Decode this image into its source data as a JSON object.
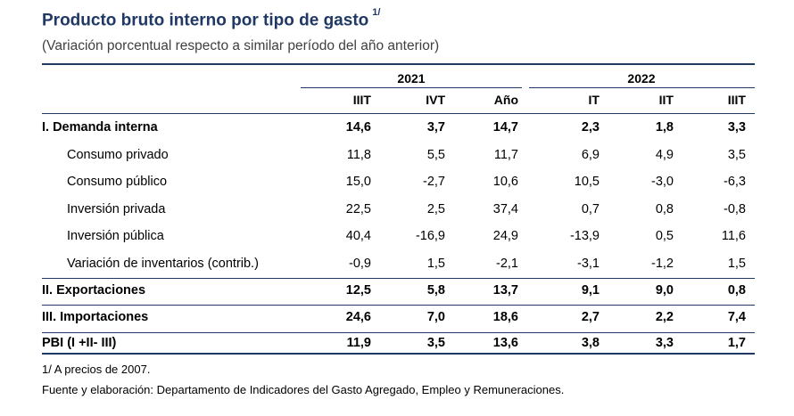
{
  "title": "Producto bruto interno por tipo de gasto",
  "title_note": "1/",
  "subtitle": "(Variación porcentual respecto a similar período del año anterior)",
  "colors": {
    "title": "#1f3864",
    "rule": "#1f3864"
  },
  "years": [
    "2021",
    "2022"
  ],
  "columns": [
    "IIIT",
    "IVT",
    "Año",
    "IT",
    "IIT",
    "IIIT"
  ],
  "rows": [
    {
      "label": "I. Demanda interna",
      "bold": true,
      "indent": false,
      "values": [
        "14,6",
        "3,7",
        "14,7",
        "2,3",
        "1,8",
        "3,3"
      ]
    },
    {
      "label": "Consumo privado",
      "bold": false,
      "indent": true,
      "values": [
        "11,8",
        "5,5",
        "11,7",
        "6,9",
        "4,9",
        "3,5"
      ]
    },
    {
      "label": "Consumo público",
      "bold": false,
      "indent": true,
      "values": [
        "15,0",
        "-2,7",
        "10,6",
        "10,5",
        "-3,0",
        "-6,3"
      ]
    },
    {
      "label": "Inversión privada",
      "bold": false,
      "indent": true,
      "values": [
        "22,5",
        "2,5",
        "37,4",
        "0,7",
        "0,8",
        "-0,8"
      ]
    },
    {
      "label": "Inversión pública",
      "bold": false,
      "indent": true,
      "values": [
        "40,4",
        "-16,9",
        "24,9",
        "-13,9",
        "0,5",
        "11,6"
      ]
    },
    {
      "label": "Variación de inventarios (contrib.)",
      "bold": false,
      "indent": true,
      "values": [
        "-0,9",
        "1,5",
        "-2,1",
        "-3,1",
        "-1,2",
        "1,5"
      ]
    },
    {
      "label": "II. Exportaciones",
      "bold": true,
      "indent": false,
      "values": [
        "12,5",
        "5,8",
        "13,7",
        "9,1",
        "9,0",
        "0,8"
      ]
    },
    {
      "label": "III. Importaciones",
      "bold": true,
      "indent": false,
      "values": [
        "24,6",
        "7,0",
        "18,6",
        "2,7",
        "2,2",
        "7,4"
      ]
    },
    {
      "label": "PBI (I +II- III)",
      "bold": true,
      "indent": false,
      "values": [
        "11,9",
        "3,5",
        "13,6",
        "3,8",
        "3,3",
        "1,7"
      ]
    }
  ],
  "footnotes": [
    "1/ A precios de 2007.",
    "Fuente y elaboración: Departamento de Indicadores del Gasto Agregado, Empleo y Remuneraciones."
  ]
}
